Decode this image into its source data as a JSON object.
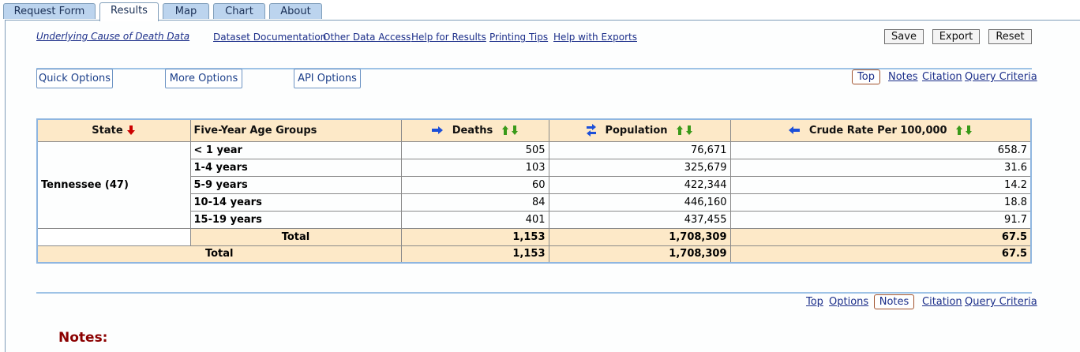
{
  "tabs": [
    {
      "label": "Request Form",
      "active": false
    },
    {
      "label": "Results",
      "active": true
    },
    {
      "label": "Map",
      "active": false
    },
    {
      "label": "Chart",
      "active": false
    },
    {
      "label": "About",
      "active": false
    }
  ],
  "links": {
    "dataset_title": "Underlying Cause of Death Data",
    "documentation": "Dataset Documentation",
    "other_access": "Other Data Access",
    "help_results": "Help for Results",
    "printing": "Printing Tips",
    "help_exports": "Help with Exports"
  },
  "buttons": {
    "save": "Save",
    "export": "Export",
    "reset": "Reset"
  },
  "options": {
    "quick": "Quick Options",
    "more": "More Options",
    "api": "API Options"
  },
  "nav_top": {
    "top": "Top",
    "notes": "Notes",
    "citation": "Citation",
    "query": "Query Criteria"
  },
  "nav_bottom": {
    "top": "Top",
    "options": "Options",
    "notes": "Notes",
    "citation": "Citation",
    "query": "Query Criteria"
  },
  "table": {
    "headers": {
      "state": "State",
      "age": "Five-Year Age Groups",
      "deaths": "Deaths",
      "population": "Population",
      "rate": "Crude Rate Per 100,000"
    },
    "state_name": "Tennessee (47)",
    "rows": [
      {
        "age": "< 1 year",
        "deaths": "505",
        "population": "76,671",
        "rate": "658.7"
      },
      {
        "age": "1-4 years",
        "deaths": "103",
        "population": "325,679",
        "rate": "31.6"
      },
      {
        "age": "5-9 years",
        "deaths": "60",
        "population": "422,344",
        "rate": "14.2"
      },
      {
        "age": "10-14 years",
        "deaths": "84",
        "population": "446,160",
        "rate": "18.8"
      },
      {
        "age": "15-19 years",
        "deaths": "401",
        "population": "437,455",
        "rate": "91.7"
      }
    ],
    "subtotal": {
      "label": "Total",
      "deaths": "1,153",
      "population": "1,708,309",
      "rate": "67.5"
    },
    "grand_total": {
      "label": "Total",
      "deaths": "1,153",
      "population": "1,708,309",
      "rate": "67.5"
    }
  },
  "notes_heading": "Notes:",
  "colors": {
    "accent": "#1c3f9a",
    "header_bg": "#fde9c8",
    "tab_bg": "#bcd4ee",
    "sort_red": "#cc0000",
    "sort_green": "#3a9a1a"
  },
  "icons": [
    "sort-down-red-icon",
    "arrow-right-icon",
    "swap-icon",
    "arrow-left-icon",
    "sort-up-down-icon"
  ]
}
